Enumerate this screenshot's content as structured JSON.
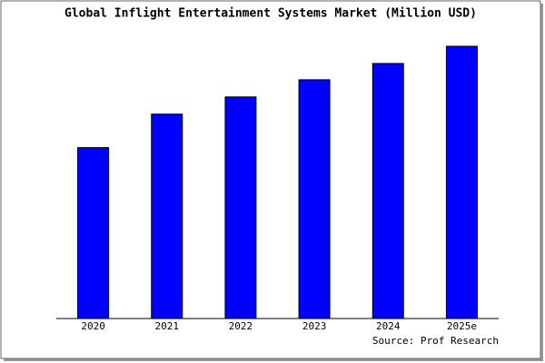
{
  "chart_data": {
    "type": "bar",
    "title": "Global Inflight Entertainment Systems Market (Million USD)",
    "categories": [
      "2020",
      "2021",
      "2022",
      "2023",
      "2024",
      "2025e"
    ],
    "values": [
      189,
      226,
      245,
      264,
      282,
      301
    ],
    "color": "#0000ff",
    "ylim": [
      0,
      303
    ],
    "source": "Source: Prof Research"
  }
}
